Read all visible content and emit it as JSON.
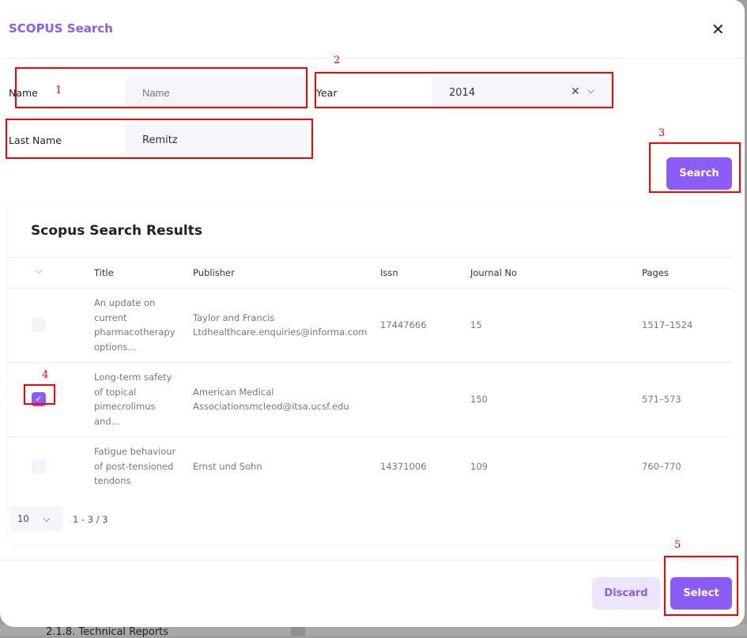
{
  "dialog": {
    "title": "SCOPUS Search",
    "close_icon": "close-icon"
  },
  "form": {
    "name_label": "Name",
    "name_placeholder": "Name",
    "name_value": "",
    "year_label": "Year",
    "year_value": "2014",
    "last_name_label": "Last Name",
    "last_name_value": "Remitz",
    "search_label": "Search"
  },
  "results": {
    "title": "Scopus Search Results",
    "columns": [
      "Title",
      "Publisher",
      "Issn",
      "Journal No",
      "Pages"
    ],
    "rows": [
      {
        "title_lines": [
          "An update on",
          "current",
          "pharmacotherapy",
          "options..."
        ],
        "publisher_lines": [
          "Taylor and Francis",
          "Ltdhealthcare.enquiries@informa.com"
        ],
        "issn": "17447666",
        "journal_no": "15",
        "pages": "1517–1524",
        "selected": false
      },
      {
        "title_lines": [
          "Long-term safety",
          "of topical",
          "pimecrolimus",
          "and..."
        ],
        "publisher_lines": [
          "American Medical",
          "Associationsmcleod@itsa.ucsf.edu"
        ],
        "issn": "",
        "journal_no": "150",
        "pages": "571–573",
        "selected": true
      },
      {
        "title_lines": [
          "Fatigue behaviour",
          "of post-tensioned",
          "tendons"
        ],
        "publisher_lines": [
          "Ernst und Sohn"
        ],
        "issn": "14371006",
        "journal_no": "109",
        "pages": "760–770",
        "selected": false
      }
    ],
    "page_size": "10",
    "range": "1 - 3 / 3"
  },
  "footer": {
    "discard_label": "Discard",
    "select_label": "Select"
  },
  "background": {
    "text": "2.1.8. Technical Reports"
  },
  "annotations": [
    "1",
    "2",
    "3",
    "4",
    "5"
  ],
  "colors": {
    "accent": "#8b5cf6",
    "accent_soft": "#ede5fd",
    "annotation": "#ff0000"
  }
}
